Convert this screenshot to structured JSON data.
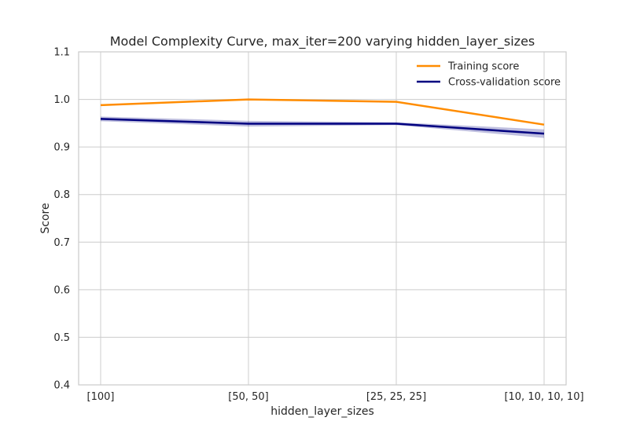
{
  "chart_data": {
    "type": "line",
    "title": "Model Complexity Curve, max_iter=200 varying hidden_layer_sizes",
    "xlabel": "hidden_layer_sizes",
    "ylabel": "Score",
    "categories": [
      "[100]",
      "[50, 50]",
      "[25, 25, 25]",
      "[10, 10, 10, 10]"
    ],
    "ylim": [
      0.4,
      1.1
    ],
    "yticks": [
      "0.4",
      "0.5",
      "0.6",
      "0.7",
      "0.8",
      "0.9",
      "1.0",
      "1.1"
    ],
    "grid": true,
    "legend_position": "top-right",
    "series": [
      {
        "name": "Training score",
        "color": "#ff8c00",
        "values": [
          0.988,
          1.0,
          0.995,
          0.947
        ],
        "band_lower": [
          0.988,
          1.0,
          0.995,
          0.947
        ],
        "band_upper": [
          0.988,
          1.0,
          0.995,
          0.947
        ]
      },
      {
        "name": "Cross-validation score",
        "color": "#000080",
        "values": [
          0.959,
          0.949,
          0.949,
          0.928
        ],
        "band_lower": [
          0.954,
          0.943,
          0.946,
          0.919
        ],
        "band_upper": [
          0.964,
          0.955,
          0.952,
          0.937
        ]
      }
    ]
  }
}
